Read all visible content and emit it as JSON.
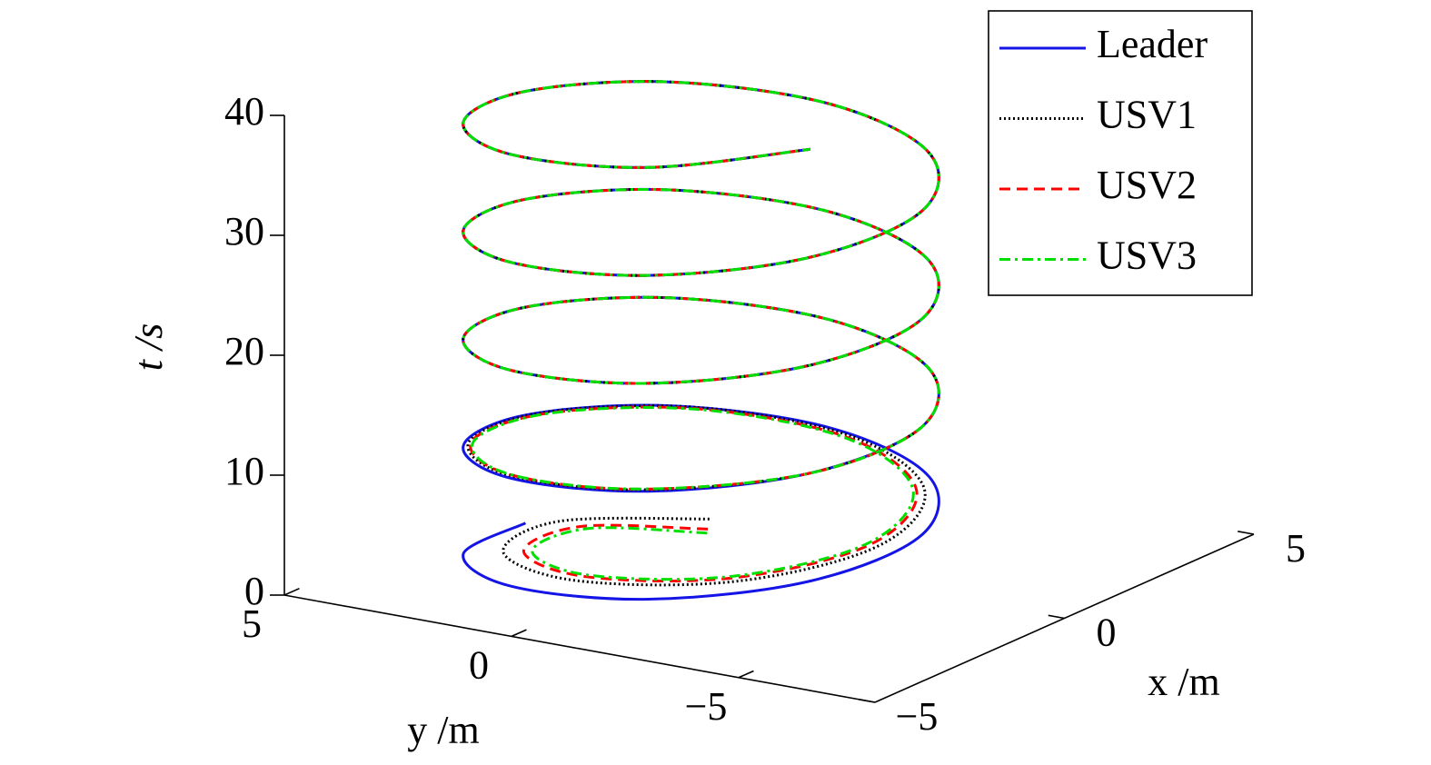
{
  "chart_data": {
    "type": "line3d",
    "legend": "upper right",
    "xlabel": "x /m",
    "ylabel": "y /m",
    "zlabel": "t /s",
    "xlim": [
      -5,
      5
    ],
    "ylim": [
      -8,
      5
    ],
    "zlim": [
      0,
      40
    ],
    "xticks": [
      {
        "value": -5,
        "label": "−5"
      },
      0,
      5
    ],
    "yticks": [
      {
        "value": -5,
        "label": "−5"
      },
      0,
      5
    ],
    "zticks": [
      0,
      10,
      20,
      30,
      40
    ],
    "t": [
      0,
      1,
      2,
      3,
      4,
      5,
      6,
      7,
      8,
      9,
      10,
      11,
      12,
      13,
      14,
      15,
      16,
      17,
      18,
      19,
      20,
      21,
      22,
      23,
      24,
      25,
      26,
      27,
      28,
      29,
      30,
      31,
      32,
      33,
      34,
      35,
      36,
      37,
      38,
      39,
      40
    ],
    "series": [
      {
        "name": "Leader",
        "color": "#1414e6",
        "dash": "solid",
        "x": [
          -0.11,
          -2.4,
          -3.9,
          -3.9,
          -2.4,
          -0.11,
          1.9,
          2.7,
          1.9,
          -0.11,
          -2.4,
          -3.9,
          -3.9,
          -2.4,
          -0.11,
          1.9,
          2.7,
          1.9,
          -0.11,
          -2.4,
          -3.9,
          -3.9,
          -2.4,
          -0.11,
          1.9,
          2.7,
          1.9,
          -0.11,
          -2.4,
          -3.9,
          -3.9,
          -2.4,
          -0.11,
          1.9,
          2.7,
          1.9,
          -0.11,
          -2.4,
          -3.9,
          -3.9,
          -2.4
        ],
        "y": [
          3.77,
          3.23,
          0.92,
          -2.1,
          -4.41,
          -4.95,
          -3.44,
          -0.59,
          2.26,
          3.77,
          3.23,
          0.92,
          -2.1,
          -4.41,
          -4.95,
          -3.44,
          -0.59,
          2.26,
          3.77,
          3.23,
          0.92,
          -2.1,
          -4.41,
          -4.95,
          -3.44,
          -0.59,
          2.26,
          3.77,
          3.23,
          0.92,
          -2.1,
          -4.41,
          -4.95,
          -3.44,
          -0.59,
          2.26,
          3.77,
          3.23,
          0.92,
          -2.1,
          -4.41
        ]
      },
      {
        "name": "USV1",
        "color": "#000000",
        "dash": "dotted",
        "x": [
          1.47,
          -0.28,
          -2.53,
          -3.67,
          -2.98,
          -0.92,
          1.31,
          2.5,
          2.05,
          0.16,
          -2.16,
          -3.78,
          -3.91,
          -2.4,
          -0.11,
          1.9,
          2.7,
          1.9,
          -0.11,
          -2.4,
          -3.9,
          -3.9,
          -2.4,
          -0.11,
          1.9,
          2.7,
          1.9,
          -0.11,
          -2.4,
          -3.9,
          -3.9,
          -2.4,
          -0.11,
          1.9,
          2.7,
          1.9,
          -0.11,
          -2.4,
          -3.9,
          -3.9,
          -2.4
        ],
        "y": [
          1.04,
          2.88,
          2.24,
          -0.32,
          -3.26,
          -4.66,
          -3.83,
          -1.25,
          1.74,
          3.57,
          3.3,
          1.11,
          -1.9,
          -4.41,
          -4.95,
          -3.44,
          -0.59,
          2.26,
          3.77,
          3.23,
          0.92,
          -2.1,
          -4.41,
          -4.95,
          -3.44,
          -0.59,
          2.26,
          3.77,
          3.23,
          0.92,
          -2.1,
          -4.41,
          -4.95,
          -3.44,
          -0.59,
          2.26,
          3.77,
          3.23,
          0.92,
          -2.1,
          -4.41
        ]
      },
      {
        "name": "USV2",
        "color": "#ff0000",
        "dash": "dashed",
        "x": [
          1.03,
          -0.34,
          -2.34,
          -3.43,
          -2.85,
          -0.91,
          1.24,
          2.42,
          1.99,
          0.14,
          -2.14,
          -3.75,
          -3.88,
          -2.4,
          -0.11,
          1.9,
          2.7,
          1.9,
          -0.11,
          -2.4,
          -3.9,
          -3.9,
          -2.4,
          -0.11,
          1.9,
          2.7,
          1.9,
          -0.11,
          -2.4,
          -3.9,
          -3.9,
          -2.4,
          -0.11,
          1.9,
          2.7,
          1.9,
          -0.11,
          -2.4,
          -3.9,
          -3.9,
          -2.4
        ],
        "y": [
          0.71,
          2.37,
          1.95,
          -0.34,
          -3.1,
          -4.48,
          -3.71,
          -1.23,
          1.69,
          3.49,
          3.26,
          1.09,
          -1.89,
          -4.41,
          -4.95,
          -3.44,
          -0.59,
          2.26,
          3.77,
          3.23,
          0.92,
          -2.1,
          -4.41,
          -4.95,
          -3.44,
          -0.59,
          2.26,
          3.77,
          3.23,
          0.92,
          -2.1,
          -4.41,
          -4.95,
          -3.44,
          -0.59,
          2.26,
          3.77,
          3.23,
          0.92,
          -2.1,
          -4.41
        ]
      },
      {
        "name": "USV3",
        "color": "#00e000",
        "dash": "dashdot",
        "x": [
          0.86,
          -0.36,
          -2.26,
          -3.34,
          -2.79,
          -0.91,
          1.21,
          2.38,
          1.97,
          0.14,
          -2.13,
          -3.74,
          -3.87,
          -2.4,
          -0.11,
          1.9,
          2.7,
          1.9,
          -0.11,
          -2.4,
          -3.9,
          -3.9,
          -2.4,
          -0.11,
          1.9,
          2.7,
          1.9,
          -0.11,
          -2.4,
          -3.9,
          -3.9,
          -2.4,
          -0.11,
          1.9,
          2.7,
          1.9,
          -0.11,
          -2.4,
          -3.9,
          -3.9,
          -2.4
        ],
        "y": [
          0.58,
          2.17,
          1.83,
          -0.34,
          -3.03,
          -4.4,
          -3.66,
          -1.23,
          1.66,
          3.47,
          3.23,
          1.09,
          -1.89,
          -4.41,
          -4.95,
          -3.44,
          -0.59,
          2.26,
          3.77,
          3.23,
          0.92,
          -2.1,
          -4.41,
          -4.95,
          -3.44,
          -0.59,
          2.26,
          3.77,
          3.23,
          0.92,
          -2.1,
          -4.41,
          -4.95,
          -3.44,
          -0.59,
          2.26,
          3.77,
          3.23,
          0.92,
          -2.1,
          -4.41
        ]
      }
    ]
  }
}
